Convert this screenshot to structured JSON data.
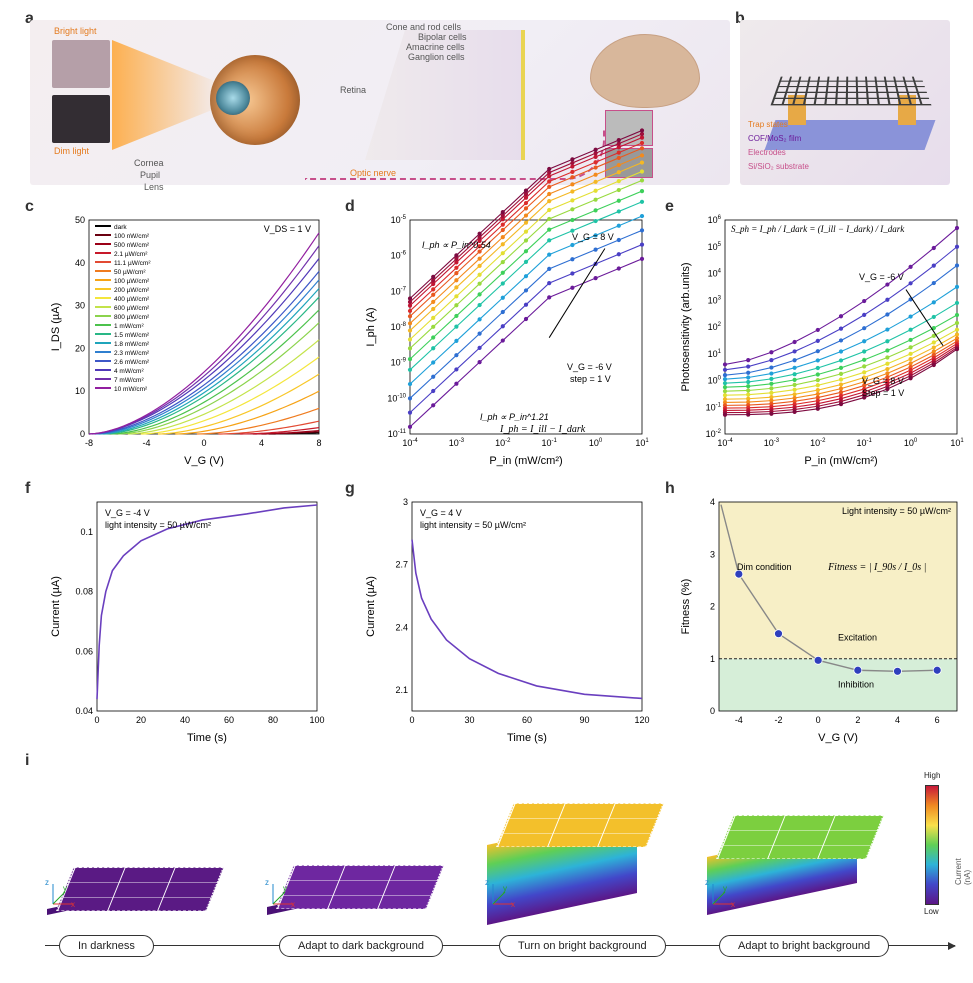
{
  "panel_labels": {
    "a": "a",
    "b": "b",
    "c": "c",
    "d": "d",
    "e": "e",
    "f": "f",
    "g": "g",
    "h": "h",
    "i": "i"
  },
  "panel_a": {
    "bright_label": "Bright light",
    "dim_label": "Dim light",
    "cornea": "Cornea",
    "pupil": "Pupil",
    "lens": "Lens",
    "retina": "Retina",
    "optic_nerve": "Optic nerve",
    "cone_rod": "Cone and rod cells",
    "bipolar": "Bipolar cells",
    "amacrine": "Amacrine cells",
    "ganglion": "Ganglion cells"
  },
  "panel_b": {
    "trap": "Trap states",
    "film": "COF/MoS₂ film",
    "electrodes": "Electrodes",
    "substrate": "Si/SiO₂ substrate"
  },
  "chart_c": {
    "type": "line",
    "xlabel": "V_G (V)",
    "ylabel": "I_DS (µA)",
    "xlim": [
      -8,
      8
    ],
    "xticks": [
      -8,
      -4,
      0,
      4,
      8
    ],
    "ylim": [
      0,
      50
    ],
    "yticks": [
      0,
      10,
      20,
      30,
      40,
      50
    ],
    "vds": "V_DS = 1 V",
    "legend": [
      "dark",
      "100 nW/cm²",
      "500 nW/cm²",
      "2.1 µW/cm²",
      "11.1 µW/cm²",
      "50 µW/cm²",
      "100 µW/cm²",
      "200 µW/cm²",
      "400 µW/cm²",
      "600 µW/cm²",
      "800 µW/cm²",
      "1 mW/cm²",
      "1.5 mW/cm²",
      "1.8 mW/cm²",
      "2.3 mW/cm²",
      "2.6 mW/cm²",
      "4 mW/cm²",
      "7 mW/cm²",
      "10 mW/cm²"
    ],
    "colors": [
      "#000000",
      "#6a0010",
      "#9b0017",
      "#c7192a",
      "#e24a33",
      "#ef7b1f",
      "#f6a316",
      "#f8c727",
      "#f4e63c",
      "#c3e34a",
      "#8bd34c",
      "#4cc24c",
      "#29b786",
      "#1fa5bb",
      "#2f7fcf",
      "#3d57c7",
      "#5038b8",
      "#7130ab",
      "#921fa0"
    ],
    "end_y_at_vg8": [
      0.3,
      0.5,
      0.8,
      1.5,
      3,
      6,
      10,
      14,
      18,
      22,
      26,
      29,
      32,
      34,
      36,
      38,
      41,
      44,
      47
    ],
    "start_vg": [
      4.5,
      4.0,
      3.4,
      2.5,
      1.0,
      -0.5,
      -2.0,
      -3.2,
      -4.4,
      -5.3,
      -6.0,
      -6.5,
      -7.0,
      -7.3,
      -7.6,
      -7.8,
      -8.0,
      -8.0,
      -8.0
    ]
  },
  "chart_d": {
    "type": "loglog",
    "xlabel": "P_in  (mW/cm²)",
    "ylabel": "I_ph (A)",
    "xlim_exp": [
      -4,
      1
    ],
    "ylim_exp": [
      -11,
      -5
    ],
    "xticks_exp": [
      -4,
      -3,
      -2,
      -1,
      0,
      1
    ],
    "yticks_exp": [
      -11,
      -10,
      -9,
      -8,
      -7,
      -6,
      -5
    ],
    "annot1": "I_ph ∝ P_in^0.54",
    "annot2": "I_ph ∝ P_in^1.21",
    "arrow_label": "V_G = 8 V",
    "arrow_label2": "V_G = -6 V",
    "step": "step = 1 V",
    "formula": "I_ph = I_ill − I_dark",
    "colors": [
      "#6b1b9a",
      "#4a3fc5",
      "#2e6fd2",
      "#1fa0d9",
      "#1fc3a6",
      "#3dd05a",
      "#98da3e",
      "#e3df33",
      "#f4b824",
      "#f38a1c",
      "#e9591f",
      "#dc2c2b",
      "#c31532",
      "#a00f3a",
      "#7d0a40"
    ],
    "intercept_at_xmin": [
      -10.8,
      -10.4,
      -10.0,
      -9.6,
      -9.2,
      -8.9,
      -8.6,
      -8.35,
      -8.1,
      -7.9,
      -7.7,
      -7.55,
      -7.4,
      -7.3,
      -7.2
    ],
    "slope_low": 1.21,
    "slope_high": 0.54,
    "knee_x": -1.0
  },
  "chart_e": {
    "type": "loglog",
    "xlabel": "P_in  (mW/cm²)",
    "ylabel": "Photosensitivity (arb.units)",
    "xlim_exp": [
      -4,
      1
    ],
    "ylim_exp": [
      -2,
      6
    ],
    "xticks_exp": [
      -4,
      -3,
      -2,
      -1,
      0,
      1
    ],
    "yticks_exp": [
      -2,
      -1,
      0,
      1,
      2,
      3,
      4,
      5,
      6
    ],
    "formula": "S_ph = I_ph / I_dark = (I_ill − I_dark) / I_dark",
    "arrow1": "V_G = -6 V",
    "arrow2": "V_G = 8 V",
    "step": "Step = 1 V",
    "colors": [
      "#6b1b9a",
      "#4a3fc5",
      "#2e6fd2",
      "#1fa0d9",
      "#1fc3a6",
      "#3dd05a",
      "#98da3e",
      "#e3df33",
      "#f4b824",
      "#f38a1c",
      "#e9591f",
      "#dc2c2b",
      "#c31532",
      "#a00f3a",
      "#7d0a40"
    ],
    "intercept_at_xmin": [
      0.6,
      0.4,
      0.2,
      0.05,
      -0.1,
      -0.25,
      -0.4,
      -0.55,
      -0.7,
      -0.82,
      -0.93,
      -1.03,
      -1.12,
      -1.2,
      -1.28
    ],
    "final_at_xmax": [
      5.7,
      5.0,
      4.3,
      3.5,
      2.9,
      2.45,
      2.15,
      1.9,
      1.72,
      1.58,
      1.47,
      1.38,
      1.3,
      1.23,
      1.17
    ]
  },
  "chart_f": {
    "type": "line",
    "xlabel": "Time (s)",
    "ylabel": "Current (µA)",
    "xlim": [
      0,
      100
    ],
    "xticks": [
      0,
      20,
      40,
      60,
      80,
      100
    ],
    "ylim": [
      0.04,
      0.11
    ],
    "yticks": [
      0.04,
      0.06,
      0.08,
      0.1
    ],
    "note1": "V_G = -4 V",
    "note2": "light intensity = 50 µW/cm²",
    "color": "#6a3fbf",
    "t": [
      0,
      1,
      2,
      4,
      7,
      12,
      20,
      32,
      48,
      68,
      85,
      100
    ],
    "y": [
      0.044,
      0.062,
      0.072,
      0.08,
      0.087,
      0.092,
      0.097,
      0.101,
      0.104,
      0.106,
      0.108,
      0.109
    ]
  },
  "chart_g": {
    "type": "line",
    "xlabel": "Time (s)",
    "ylabel": "Current (µA)",
    "xlim": [
      0,
      120
    ],
    "xticks": [
      0,
      30,
      60,
      90,
      120
    ],
    "ylim": [
      2.0,
      3.0
    ],
    "yticks": [
      2.1,
      2.4,
      2.7,
      3.0
    ],
    "note1": "V_G = 4 V",
    "note2": "light intensity = 50 µW/cm²",
    "color": "#6a3fbf",
    "t": [
      0,
      2,
      5,
      10,
      18,
      30,
      45,
      65,
      90,
      120
    ],
    "y": [
      2.82,
      2.66,
      2.54,
      2.44,
      2.34,
      2.25,
      2.18,
      2.12,
      2.08,
      2.06
    ]
  },
  "chart_h": {
    "type": "line+markers",
    "xlabel": "V_G (V)",
    "ylabel": "Fitness (%)",
    "xlim": [
      -5,
      7
    ],
    "xticks": [
      -4,
      -2,
      0,
      2,
      4,
      6
    ],
    "ylim": [
      0,
      4
    ],
    "yticks": [
      0,
      1,
      2,
      3,
      4
    ],
    "light": "Light intensity = 50 µW/cm²",
    "dim": "Dim condition",
    "exc": "Excitation",
    "inh": "Inhibition",
    "fitness_formula": "Fitness = | I_90s / I_0s |",
    "bg_top_color": "#f7efc6",
    "bg_bot_color": "#d6eed8",
    "marker_color": "#2f3fbd",
    "line_color": "#888888",
    "x": [
      -4,
      -2,
      0,
      2,
      4,
      6
    ],
    "y": [
      2.62,
      1.48,
      0.97,
      0.78,
      0.76,
      0.78
    ]
  },
  "panel_i": {
    "stage_labels": [
      "In darkness",
      "Adapt to dark background",
      "Turn on bright background",
      "Adapt to bright background"
    ],
    "top_colors": [
      "#5a1a84",
      "#6e27a0",
      "#f3c02b",
      "#7ccf3f"
    ],
    "side_heights": [
      6,
      8,
      80,
      58
    ],
    "colorbar_low": "Low",
    "colorbar_high": "High",
    "colorbar_label": "Current (nA)",
    "axes": "x / y / z"
  }
}
